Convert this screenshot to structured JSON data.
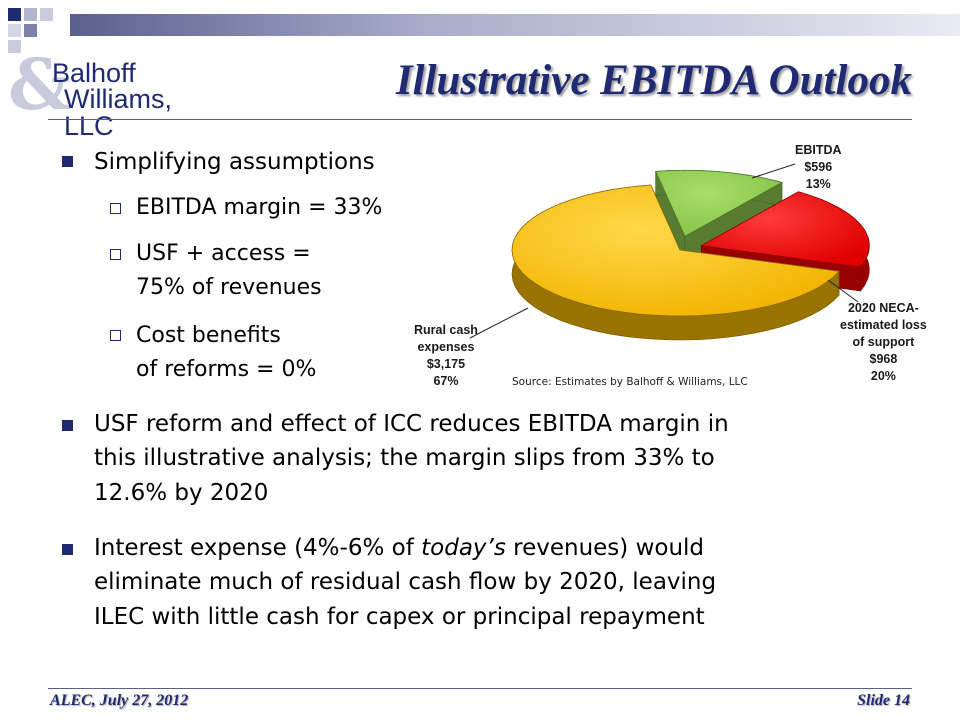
{
  "brand": {
    "logo_line1": "Balhoff",
    "logo_line2": "Williams, LLC",
    "logo_mark": "&",
    "accent": "#1f2a73"
  },
  "title": "Illustrative EBITDA Outlook",
  "bullets": {
    "b1": "Simplifying assumptions",
    "b1_sub1": "EBITDA margin = 33%",
    "b1_sub2_l1": "USF + access =",
    "b1_sub2_l2": "75% of revenues",
    "b1_sub3_l1": "Cost benefits",
    "b1_sub3_l2": "of reforms = 0%",
    "b2_l1": "USF reform and effect of ICC reduces EBITDA margin in",
    "b2_l2": "this illustrative  analysis; the margin slips from 33% to",
    "b2_l3": "12.6% by 2020",
    "b3_l1_a": "Interest expense (4%-6% of ",
    "b3_l1_em": "today’s",
    "b3_l1_b": " revenues) would",
    "b3_l2": "eliminate much of residual cash flow by 2020, leaving",
    "b3_l3": "ILEC with little cash for capex or principal repayment"
  },
  "chart_data": {
    "type": "pie",
    "title": "",
    "slices": [
      {
        "label_lines": [
          "EBITDA",
          "$596",
          "13%"
        ],
        "value": 596,
        "percent": 13,
        "color": "#92d050",
        "exploded": true
      },
      {
        "label_lines": [
          "2020 NECA-",
          "estimated loss",
          "of support",
          "$968",
          "20%"
        ],
        "value": 968,
        "percent": 20,
        "color": "#ff0000",
        "exploded": true
      },
      {
        "label_lines": [
          "Rural cash",
          "expenses",
          "$3,175",
          "67%"
        ],
        "value": 3175,
        "percent": 67,
        "color": "#ffc000",
        "exploded": false
      }
    ],
    "source": "Source: Estimates by Balhoff & Williams, LLC"
  },
  "footer": {
    "left": "ALEC, July 27, 2012",
    "right": "Slide 14"
  }
}
